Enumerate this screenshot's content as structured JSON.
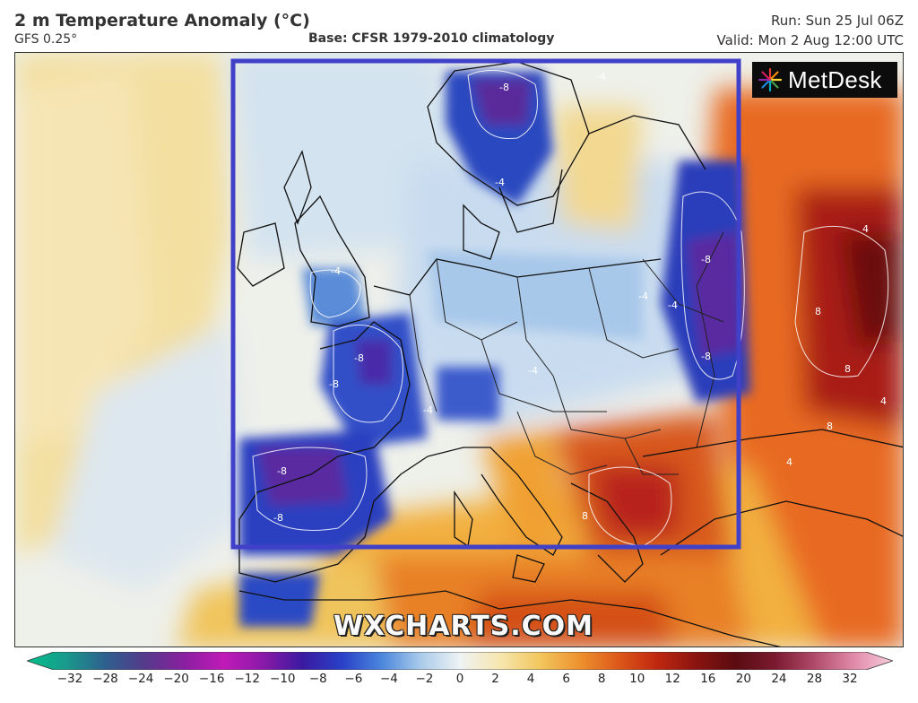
{
  "header": {
    "title": "2 m Temperature Anomaly (°C)",
    "model": "GFS 0.25°",
    "base": "Base: CFSR 1979-2010 climatology",
    "run": "Run: Sun 25 Jul 06Z",
    "valid": "Valid: Mon 2 Aug 12:00 UTC"
  },
  "logo": {
    "text": "MetDesk",
    "icon": "metdesk-starburst-icon"
  },
  "watermark": "WXCHARTS.COM",
  "contour_labels": [
    "-8",
    "-8",
    "-8",
    "-8",
    "-8",
    "-8",
    "-8",
    "-4",
    "-4",
    "-4",
    "-4",
    "-4",
    "-4",
    "-4",
    "4",
    "4",
    "4",
    "8",
    "8",
    "8",
    "8"
  ],
  "colorbar": {
    "ticks": [
      "−32",
      "−28",
      "−24",
      "−20",
      "−16",
      "−12",
      "−10",
      "−8",
      "−6",
      "−4",
      "−2",
      "0",
      "2",
      "4",
      "6",
      "8",
      "10",
      "12",
      "16",
      "20",
      "24",
      "28",
      "32"
    ],
    "colors": [
      "#00c08a",
      "#1a9a8c",
      "#2e5f8e",
      "#553a8a",
      "#8a1fa0",
      "#c01ab8",
      "#8a1aa8",
      "#3a1aa0",
      "#2a40c8",
      "#4a86dc",
      "#a9cbea",
      "#eef2f4",
      "#f6e6b0",
      "#f2c860",
      "#ee9430",
      "#de5a1a",
      "#c02810",
      "#8a1410",
      "#5a0c10",
      "#7a1a30",
      "#b04a6a",
      "#e08aa8",
      "#f8ccdc"
    ]
  },
  "highlight_box": {
    "color": "#4040c8"
  }
}
